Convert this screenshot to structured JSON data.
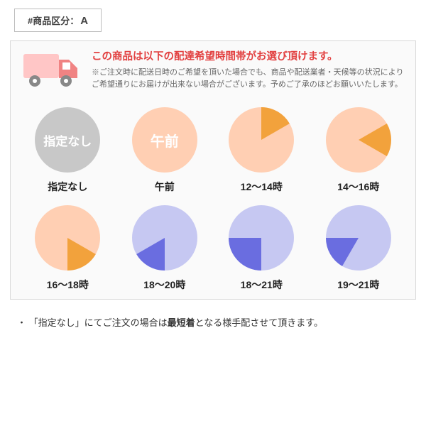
{
  "tag": {
    "prefix": "#商品区分：",
    "letter": "A"
  },
  "colors": {
    "headline": "#e24040",
    "note": "#666666",
    "truck_body": "#ffc6c6",
    "truck_cab": "#f08383",
    "truck_wheel": "#888888",
    "slot_caption": "#222222"
  },
  "headline": "この商品は以下の配達希望時間帯がお選び頂けます。",
  "note": "※ご注文時に配送日時のご希望を頂いた場合でも、商品や配送業者・天候等の状況によりご希望通りにお届けが出来ない場合がございます。予めご了承のほどお願いいたします。",
  "footnote_pre": "・ 「指定なし」にてご注文の場合は",
  "footnote_strong": "最短着",
  "footnote_post": "となる様手配させて頂きます。",
  "slots": [
    {
      "caption": "指定なし",
      "base_color": "#c8c8c8",
      "slice_color": "#c8c8c8",
      "slice_start": 0,
      "slice_extent": 0,
      "inner_label": "指定なし",
      "label_font_size": 17
    },
    {
      "caption": "午前",
      "base_color": "#ffcfb3",
      "slice_color": "#ffcfb3",
      "slice_start": 0,
      "slice_extent": 0,
      "inner_label": "午前",
      "label_font_size": 20
    },
    {
      "caption": "12～14時",
      "base_color": "#ffcfb3",
      "slice_color": "#f2a23c",
      "slice_start": 0,
      "slice_extent": 60
    },
    {
      "caption": "14～16時",
      "base_color": "#ffcfb3",
      "slice_color": "#f2a23c",
      "slice_start": 60,
      "slice_extent": 60
    },
    {
      "caption": "16～18時",
      "base_color": "#ffcfb3",
      "slice_color": "#f2a23c",
      "slice_start": 120,
      "slice_extent": 60
    },
    {
      "caption": "18～20時",
      "base_color": "#c6c8f2",
      "slice_color": "#6a6de0",
      "slice_start": 180,
      "slice_extent": 60
    },
    {
      "caption": "18～21時",
      "base_color": "#c6c8f2",
      "slice_color": "#6a6de0",
      "slice_start": 180,
      "slice_extent": 90
    },
    {
      "caption": "19～21時",
      "base_color": "#c6c8f2",
      "slice_color": "#6a6de0",
      "slice_start": 210,
      "slice_extent": 60
    }
  ]
}
